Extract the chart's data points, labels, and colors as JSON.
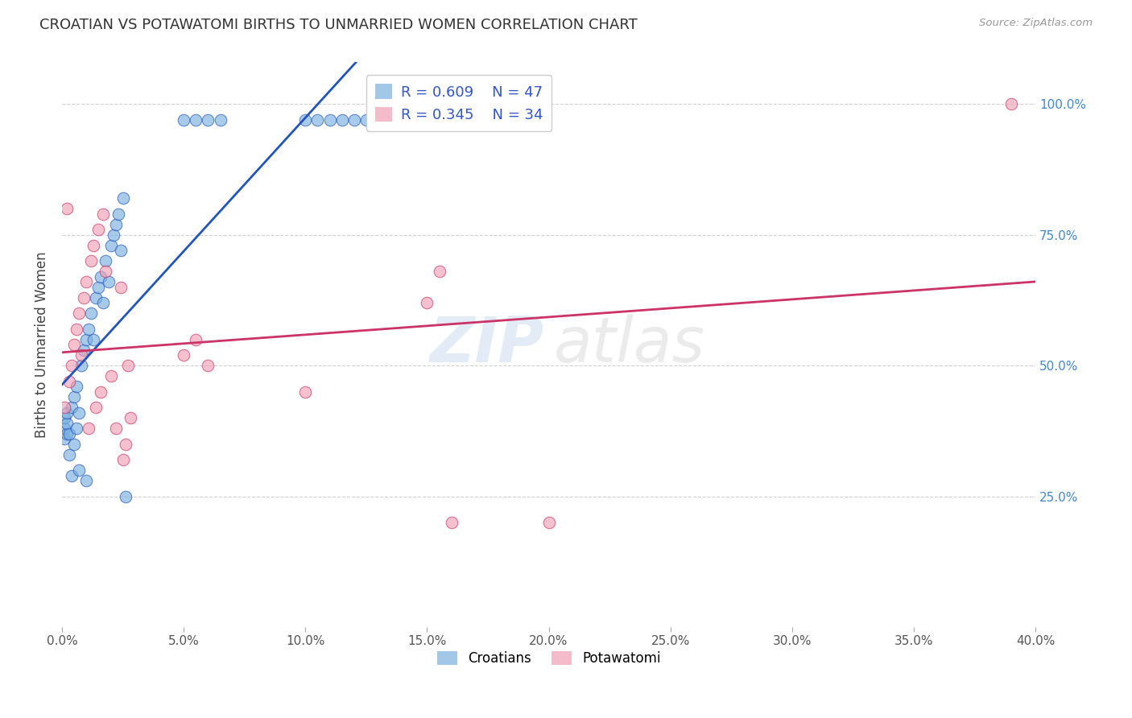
{
  "title": "CROATIAN VS POTAWATOMI BIRTHS TO UNMARRIED WOMEN CORRELATION CHART",
  "source": "Source: ZipAtlas.com",
  "ylabel": "Births to Unmarried Women",
  "xlim": [
    0.0,
    0.4
  ],
  "ylim": [
    0.0,
    1.08
  ],
  "xtick_vals": [
    0.0,
    0.05,
    0.1,
    0.15,
    0.2,
    0.25,
    0.3,
    0.35,
    0.4
  ],
  "xtick_labels": [
    "0.0%",
    "5.0%",
    "10.0%",
    "15.0%",
    "20.0%",
    "25.0%",
    "30.0%",
    "35.0%",
    "40.0%"
  ],
  "ytick_vals": [
    0.25,
    0.5,
    0.75,
    1.0
  ],
  "ytick_labels": [
    "25.0%",
    "50.0%",
    "75.0%",
    "100.0%"
  ],
  "croatian_color": "#7ab0e0",
  "potawatomi_color": "#f0a0b4",
  "croatian_line_color": "#2255bb",
  "potawatomi_line_color": "#cc3366",
  "legend_R1": "R = 0.609",
  "legend_N1": "N = 47",
  "legend_R2": "R = 0.345",
  "legend_N2": "N = 34",
  "watermark": "ZIPatlas",
  "background_color": "#ffffff",
  "grid_color": "#cccccc",
  "croatian_x": [
    0.001,
    0.001,
    0.001,
    0.002,
    0.002,
    0.002,
    0.003,
    0.003,
    0.004,
    0.004,
    0.005,
    0.005,
    0.006,
    0.006,
    0.007,
    0.007,
    0.008,
    0.009,
    0.01,
    0.01,
    0.011,
    0.012,
    0.013,
    0.014,
    0.015,
    0.016,
    0.017,
    0.018,
    0.019,
    0.02,
    0.021,
    0.022,
    0.023,
    0.024,
    0.025,
    0.026,
    0.05,
    0.055,
    0.06,
    0.065,
    0.1,
    0.105,
    0.11,
    0.115,
    0.12,
    0.125,
    0.13
  ],
  "croatian_y": [
    0.36,
    0.38,
    0.4,
    0.37,
    0.39,
    0.41,
    0.33,
    0.37,
    0.29,
    0.42,
    0.35,
    0.44,
    0.38,
    0.46,
    0.41,
    0.3,
    0.5,
    0.53,
    0.55,
    0.28,
    0.57,
    0.6,
    0.55,
    0.63,
    0.65,
    0.67,
    0.62,
    0.7,
    0.66,
    0.73,
    0.75,
    0.77,
    0.79,
    0.72,
    0.82,
    0.25,
    0.97,
    0.97,
    0.97,
    0.97,
    0.97,
    0.97,
    0.97,
    0.97,
    0.97,
    0.97,
    0.97
  ],
  "potawatomi_x": [
    0.001,
    0.002,
    0.003,
    0.004,
    0.005,
    0.006,
    0.007,
    0.008,
    0.009,
    0.01,
    0.011,
    0.012,
    0.013,
    0.014,
    0.015,
    0.016,
    0.017,
    0.018,
    0.02,
    0.022,
    0.024,
    0.025,
    0.026,
    0.027,
    0.028,
    0.05,
    0.055,
    0.06,
    0.1,
    0.15,
    0.155,
    0.16,
    0.2,
    0.39
  ],
  "potawatomi_y": [
    0.42,
    0.8,
    0.47,
    0.5,
    0.54,
    0.57,
    0.6,
    0.52,
    0.63,
    0.66,
    0.38,
    0.7,
    0.73,
    0.42,
    0.76,
    0.45,
    0.79,
    0.68,
    0.48,
    0.38,
    0.65,
    0.32,
    0.35,
    0.5,
    0.4,
    0.52,
    0.55,
    0.5,
    0.45,
    0.62,
    0.68,
    0.2,
    0.2,
    1.0
  ]
}
